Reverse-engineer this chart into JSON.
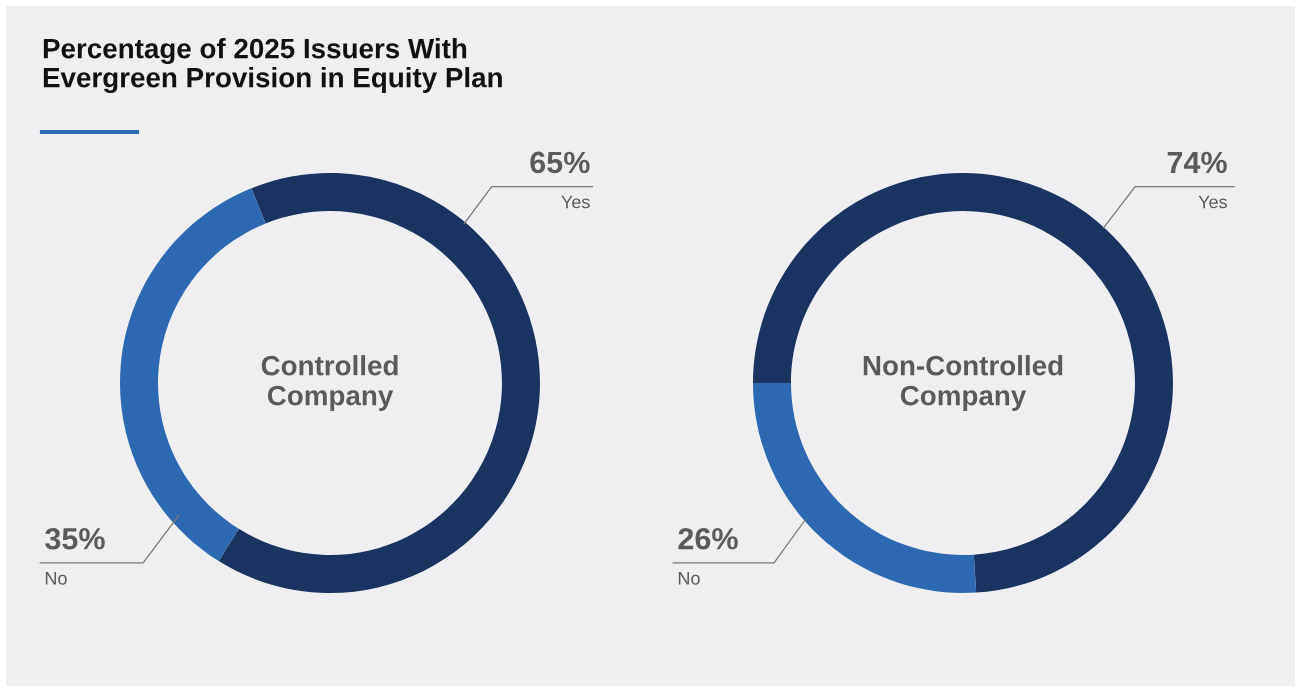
{
  "chart_data": [
    {
      "type": "donut",
      "title": "Percentage of 2025 Issuers With\nEvergreen Provision in Equity Plan",
      "annotations": [
        "Controlled Company"
      ],
      "categories": [
        "Yes",
        "No"
      ],
      "values": [
        65,
        35
      ],
      "colors": [
        "#1b3360",
        "#2d68b3"
      ],
      "value_labels": [
        "65%",
        "35%"
      ]
    },
    {
      "type": "donut",
      "annotations": [
        "Non-Controlled Company"
      ],
      "categories": [
        "Yes",
        "No"
      ],
      "values": [
        74,
        26
      ],
      "colors": [
        "#1b3360",
        "#2d68b3"
      ],
      "value_labels": [
        "74%",
        "26%"
      ]
    }
  ]
}
